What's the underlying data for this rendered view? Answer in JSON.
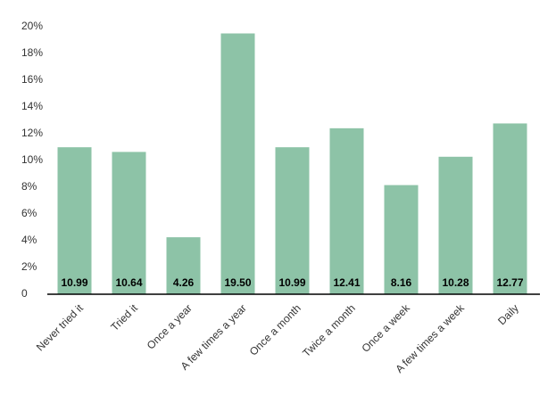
{
  "chart_data": {
    "type": "bar",
    "categories": [
      "Never tried it",
      "Tried it",
      "Once a year",
      "A few times a year",
      "Once a month",
      "Twice a month",
      "Once a week",
      "A few times a week",
      "Daily"
    ],
    "values": [
      10.99,
      10.64,
      4.26,
      19.5,
      10.99,
      12.41,
      8.16,
      10.28,
      12.77
    ],
    "value_labels": [
      "10.99",
      "10.64",
      "4.26",
      "19.50",
      "10.99",
      "12.41",
      "8.16",
      "10.28",
      "12.77"
    ],
    "color": "#8dc3a7",
    "ylim": [
      0,
      20
    ],
    "yticks": [
      0,
      {
        "value": 2,
        "label": "2%"
      },
      {
        "value": 4,
        "label": "4%"
      },
      {
        "value": 6,
        "label": "6%"
      },
      {
        "value": 8,
        "label": "8%"
      },
      {
        "value": 10,
        "label": "10%"
      },
      {
        "value": 12,
        "label": "12%"
      },
      {
        "value": 14,
        "label": "14%"
      },
      {
        "value": 16,
        "label": "16%"
      },
      {
        "value": 18,
        "label": "18%"
      },
      {
        "value": 20,
        "label": "20%"
      }
    ],
    "grid": false
  }
}
